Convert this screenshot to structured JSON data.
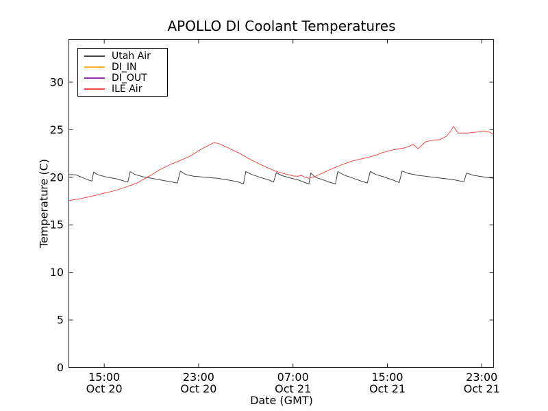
{
  "chart_data": {
    "type": "line",
    "title": "APOLLO DI Coolant Temperatures",
    "xlabel": "Date (GMT)",
    "ylabel": "Temperature (C)",
    "background_color": "#ffffff",
    "axis_color": "#222222",
    "grid": false,
    "legend_position": "upper left",
    "xlim_hours": [
      0,
      36
    ],
    "ylim": [
      0,
      34.5
    ],
    "y_ticks": [
      0,
      5,
      10,
      15,
      20,
      25,
      30
    ],
    "x_ticks": [
      {
        "hour": 3,
        "time": "15:00",
        "date": "Oct 20"
      },
      {
        "hour": 11,
        "time": "23:00",
        "date": "Oct 20"
      },
      {
        "hour": 19,
        "time": "07:00",
        "date": "Oct 21"
      },
      {
        "hour": 27,
        "time": "15:00",
        "date": "Oct 21"
      },
      {
        "hour": 35,
        "time": "23:00",
        "date": "Oct 21"
      }
    ],
    "legend": [
      {
        "label": "Utah Air",
        "color": "#404040"
      },
      {
        "label": "DI_IN",
        "color": "#ffaa33"
      },
      {
        "label": "DI_OUT",
        "color": "#9132a8"
      },
      {
        "label": "ILE Air",
        "color": "#f04848"
      }
    ],
    "series": [
      {
        "name": "Utah Air",
        "color": "#404040",
        "visible": true,
        "points": [
          [
            0,
            20.3
          ],
          [
            0.6,
            20.25
          ],
          [
            1.1,
            20.0
          ],
          [
            1.7,
            19.7
          ],
          [
            1.95,
            19.6
          ],
          [
            2.1,
            20.55
          ],
          [
            2.4,
            20.3
          ],
          [
            3.1,
            20.05
          ],
          [
            4.0,
            19.85
          ],
          [
            4.7,
            19.6
          ],
          [
            5.0,
            19.5
          ],
          [
            5.2,
            20.6
          ],
          [
            5.6,
            20.3
          ],
          [
            6.3,
            20.05
          ],
          [
            7.2,
            19.85
          ],
          [
            8.3,
            19.6
          ],
          [
            9.2,
            19.4
          ],
          [
            9.45,
            20.65
          ],
          [
            9.9,
            20.3
          ],
          [
            10.6,
            20.1
          ],
          [
            11.6,
            20.0
          ],
          [
            12.6,
            19.9
          ],
          [
            13.6,
            19.7
          ],
          [
            14.4,
            19.5
          ],
          [
            14.8,
            19.3
          ],
          [
            15.0,
            20.6
          ],
          [
            15.5,
            20.3
          ],
          [
            16.2,
            20.0
          ],
          [
            17.0,
            19.7
          ],
          [
            17.35,
            19.5
          ],
          [
            17.6,
            20.5
          ],
          [
            18.0,
            20.2
          ],
          [
            18.7,
            19.95
          ],
          [
            19.5,
            19.7
          ],
          [
            20.1,
            19.4
          ],
          [
            20.35,
            19.3
          ],
          [
            20.5,
            20.45
          ],
          [
            20.9,
            20.0
          ],
          [
            21.5,
            19.75
          ],
          [
            22.2,
            19.45
          ],
          [
            22.6,
            19.3
          ],
          [
            22.8,
            20.6
          ],
          [
            23.3,
            20.25
          ],
          [
            24.1,
            19.9
          ],
          [
            24.9,
            19.55
          ],
          [
            25.3,
            19.4
          ],
          [
            25.55,
            20.6
          ],
          [
            26.0,
            20.3
          ],
          [
            26.7,
            20.05
          ],
          [
            27.5,
            19.7
          ],
          [
            28.0,
            19.45
          ],
          [
            28.25,
            20.65
          ],
          [
            28.8,
            20.4
          ],
          [
            29.6,
            20.2
          ],
          [
            30.6,
            20.05
          ],
          [
            31.6,
            19.9
          ],
          [
            32.6,
            19.75
          ],
          [
            33.2,
            19.6
          ],
          [
            33.5,
            19.55
          ],
          [
            33.7,
            20.45
          ],
          [
            34.3,
            20.2
          ],
          [
            35.1,
            20.05
          ],
          [
            36,
            19.9
          ]
        ]
      },
      {
        "name": "DI_IN",
        "color": "#ffaa33",
        "visible": false,
        "points": []
      },
      {
        "name": "DI_OUT",
        "color": "#9132a8",
        "visible": false,
        "points": []
      },
      {
        "name": "ILE Air",
        "color": "#f04848",
        "visible": true,
        "points": [
          [
            0,
            17.55
          ],
          [
            1,
            17.75
          ],
          [
            1.9,
            18.0
          ],
          [
            2.9,
            18.3
          ],
          [
            3.9,
            18.6
          ],
          [
            4.9,
            19.0
          ],
          [
            5.8,
            19.4
          ],
          [
            6.5,
            19.9
          ],
          [
            7.2,
            20.4
          ],
          [
            7.7,
            20.8
          ],
          [
            8.7,
            21.4
          ],
          [
            9.7,
            21.9
          ],
          [
            10.4,
            22.3
          ],
          [
            11.0,
            22.8
          ],
          [
            11.6,
            23.2
          ],
          [
            12.0,
            23.45
          ],
          [
            12.3,
            23.65
          ],
          [
            12.8,
            23.5
          ],
          [
            13.5,
            23.1
          ],
          [
            14.5,
            22.5
          ],
          [
            15.5,
            21.8
          ],
          [
            16.5,
            21.2
          ],
          [
            17.4,
            20.7
          ],
          [
            18.2,
            20.4
          ],
          [
            19.0,
            20.15
          ],
          [
            19.4,
            20.1
          ],
          [
            19.7,
            20.2
          ],
          [
            20.0,
            20.0
          ],
          [
            20.4,
            19.9
          ],
          [
            20.9,
            20.1
          ],
          [
            21.6,
            20.5
          ],
          [
            22.3,
            20.9
          ],
          [
            23.1,
            21.3
          ],
          [
            24.0,
            21.7
          ],
          [
            25.0,
            22.0
          ],
          [
            26.0,
            22.3
          ],
          [
            26.6,
            22.6
          ],
          [
            27.5,
            22.9
          ],
          [
            28.5,
            23.1
          ],
          [
            29.2,
            23.45
          ],
          [
            29.6,
            23.0
          ],
          [
            30.2,
            23.7
          ],
          [
            30.8,
            23.9
          ],
          [
            31.4,
            23.95
          ],
          [
            32.0,
            24.3
          ],
          [
            32.4,
            24.9
          ],
          [
            32.6,
            25.35
          ],
          [
            33.0,
            24.65
          ],
          [
            33.8,
            24.65
          ],
          [
            34.5,
            24.75
          ],
          [
            35.2,
            24.85
          ],
          [
            35.7,
            24.75
          ],
          [
            36,
            24.5
          ]
        ]
      }
    ]
  }
}
